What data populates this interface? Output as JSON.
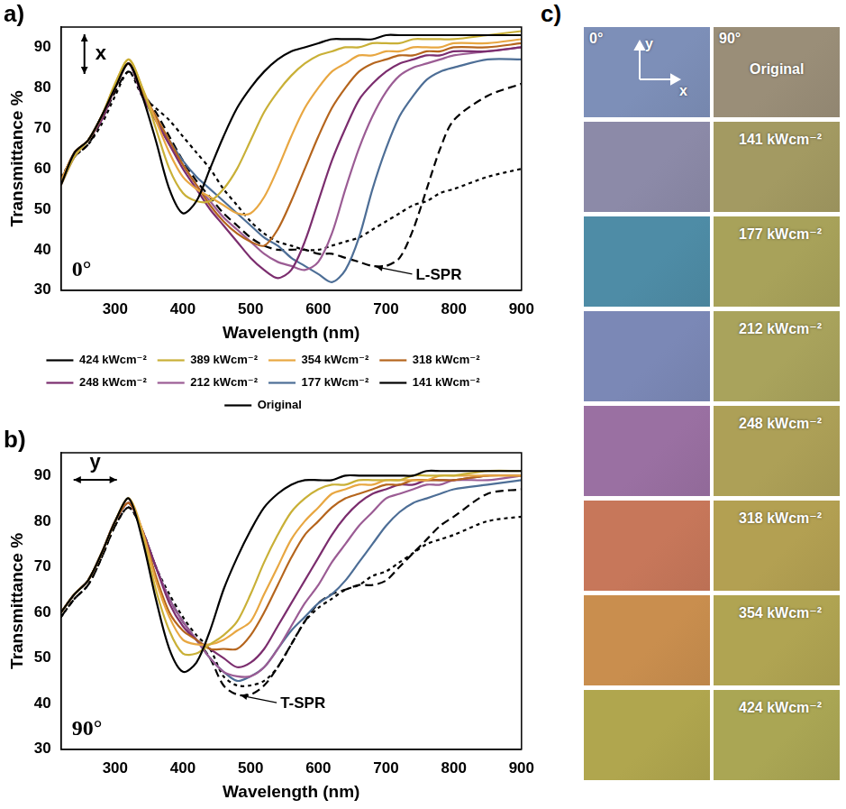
{
  "chart_data": [
    {
      "type": "line",
      "label": "a)",
      "x_label": "Wavelength (nm)",
      "y_label": "Transmittance %",
      "x": [
        220,
        240,
        260,
        280,
        300,
        320,
        340,
        360,
        380,
        400,
        420,
        440,
        460,
        480,
        500,
        520,
        540,
        560,
        580,
        600,
        620,
        640,
        660,
        680,
        700,
        720,
        740,
        760,
        780,
        800,
        850,
        900
      ],
      "xlim": [
        220,
        900
      ],
      "xticks": [
        300,
        400,
        500,
        600,
        700,
        800,
        900
      ],
      "ylim": [
        30,
        95
      ],
      "yticks": [
        30,
        40,
        50,
        60,
        70,
        80,
        90
      ],
      "grid": false,
      "legend": "bottom",
      "angle_label": "0°",
      "polarization": "x",
      "annotations": [
        {
          "text": "L-SPR"
        }
      ],
      "series": [
        {
          "name": "424 kWcm⁻²",
          "color": "#000000",
          "line_style": "solid",
          "values": [
            56,
            64,
            67,
            73,
            80,
            86,
            78,
            67,
            55,
            49,
            52,
            60,
            68,
            75,
            80,
            84,
            87,
            89,
            90,
            91,
            92,
            92,
            92,
            92,
            93,
            93,
            93,
            93,
            93,
            93,
            93,
            93
          ]
        },
        {
          "name": "389 kWcm⁻²",
          "color": "#c9b037",
          "line_style": "solid",
          "values": [
            56,
            63,
            67,
            73,
            81,
            87,
            80,
            70,
            60,
            54,
            52,
            52,
            55,
            60,
            67,
            74,
            79,
            83,
            86,
            88,
            89,
            90,
            90,
            91,
            91,
            91,
            92,
            92,
            92,
            92,
            93,
            94
          ]
        },
        {
          "name": "354 kWcm⁻²",
          "color": "#e8a742",
          "line_style": "solid",
          "values": [
            57,
            64,
            67,
            73,
            81,
            87,
            80,
            72,
            64,
            58,
            55,
            53,
            51,
            49,
            49,
            53,
            60,
            68,
            75,
            80,
            84,
            86,
            88,
            88,
            89,
            89,
            90,
            90,
            90,
            91,
            91,
            92
          ]
        },
        {
          "name": "318 kWcm⁻²",
          "color": "#b5651d",
          "line_style": "solid",
          "values": [
            57,
            64,
            67,
            73,
            80,
            86,
            79,
            73,
            67,
            61,
            56,
            51,
            47,
            44,
            42,
            41,
            45,
            52,
            60,
            68,
            75,
            80,
            84,
            86,
            87,
            88,
            88,
            89,
            89,
            90,
            90,
            91
          ]
        },
        {
          "name": "248 kWcm⁻²",
          "color": "#7b2d6e",
          "line_style": "solid",
          "values": [
            56,
            63,
            67,
            72,
            80,
            86,
            78,
            72,
            66,
            60,
            55,
            50,
            46,
            42,
            38,
            35,
            33,
            35,
            42,
            52,
            62,
            70,
            77,
            81,
            84,
            86,
            87,
            88,
            88,
            89,
            89,
            90
          ]
        },
        {
          "name": "212 kWcm⁻²",
          "color": "#9b5c94",
          "line_style": "solid",
          "values": [
            57,
            64,
            67,
            73,
            80,
            86,
            78,
            72,
            66,
            61,
            56,
            52,
            48,
            45,
            42,
            39,
            37,
            36,
            35,
            37,
            44,
            55,
            65,
            73,
            79,
            83,
            85,
            86,
            87,
            88,
            89,
            90
          ]
        },
        {
          "name": "177 kWcm⁻²",
          "color": "#4d6e96",
          "line_style": "solid",
          "values": [
            57,
            64,
            67,
            73,
            80,
            86,
            78,
            72,
            67,
            62,
            58,
            55,
            52,
            49,
            46,
            43,
            41,
            38,
            36,
            34,
            32,
            35,
            43,
            55,
            65,
            73,
            78,
            82,
            84,
            85,
            87,
            87
          ]
        },
        {
          "name": "141 kWcm⁻²",
          "color": "#000000",
          "line_style": "dashed",
          "values": [
            57,
            63,
            66,
            72,
            79,
            84,
            79,
            74,
            68,
            62,
            57,
            53,
            49,
            46,
            43,
            41,
            40,
            40,
            40,
            39,
            39,
            38,
            37,
            36,
            36,
            38,
            45,
            55,
            65,
            72,
            78,
            81
          ]
        },
        {
          "name": "Original",
          "color": "#000000",
          "line_style": "dotted",
          "values": [
            58,
            63,
            66,
            71,
            78,
            84,
            78,
            75,
            72,
            68,
            64,
            60,
            55,
            51,
            47,
            44,
            42,
            41,
            40,
            40,
            41,
            42,
            43,
            45,
            47,
            49,
            51,
            52,
            54,
            55,
            58,
            60
          ]
        }
      ]
    },
    {
      "type": "line",
      "label": "b)",
      "x_label": "Wavelength (nm)",
      "y_label": "Transmittance %",
      "x": [
        220,
        240,
        260,
        280,
        300,
        320,
        340,
        360,
        380,
        400,
        420,
        440,
        460,
        480,
        500,
        520,
        540,
        560,
        580,
        600,
        620,
        640,
        660,
        680,
        700,
        720,
        740,
        760,
        780,
        800,
        850,
        900
      ],
      "xlim": [
        220,
        900
      ],
      "xticks": [
        300,
        400,
        500,
        600,
        700,
        800,
        900
      ],
      "ylim": [
        30,
        95
      ],
      "yticks": [
        30,
        40,
        50,
        60,
        70,
        80,
        90
      ],
      "grid": false,
      "angle_label": "90°",
      "polarization": "y",
      "annotations": [
        {
          "text": "T-SPR"
        }
      ],
      "series": [
        {
          "color": "#000000",
          "line_style": "solid",
          "values": [
            60,
            64,
            67,
            73,
            80,
            85,
            76,
            63,
            52,
            47,
            49,
            56,
            65,
            72,
            78,
            83,
            86,
            88,
            89,
            89,
            89,
            90,
            90,
            90,
            90,
            90,
            90,
            91,
            91,
            91,
            91,
            91
          ]
        },
        {
          "color": "#c9b037",
          "line_style": "solid",
          "values": [
            60,
            64,
            67,
            73,
            80,
            85,
            77,
            65,
            56,
            51,
            51,
            53,
            55,
            58,
            64,
            71,
            77,
            82,
            85,
            87,
            88,
            88,
            89,
            89,
            89,
            89,
            90,
            90,
            90,
            90,
            91,
            91
          ]
        },
        {
          "color": "#e8a742",
          "line_style": "solid",
          "values": [
            60,
            64,
            67,
            73,
            80,
            85,
            78,
            67,
            59,
            54,
            53,
            53,
            54,
            56,
            58,
            64,
            70,
            76,
            80,
            83,
            86,
            87,
            88,
            88,
            89,
            89,
            89,
            89,
            90,
            90,
            90,
            90
          ]
        },
        {
          "color": "#b5651d",
          "line_style": "solid",
          "values": [
            60,
            64,
            67,
            73,
            80,
            84,
            78,
            68,
            60,
            56,
            54,
            52,
            52,
            52,
            55,
            60,
            66,
            72,
            77,
            80,
            83,
            85,
            86,
            87,
            88,
            88,
            89,
            89,
            89,
            89,
            90,
            90
          ]
        },
        {
          "color": "#7b2d6e",
          "line_style": "solid",
          "values": [
            60,
            64,
            67,
            73,
            80,
            84,
            78,
            70,
            62,
            57,
            54,
            52,
            50,
            48,
            49,
            52,
            57,
            62,
            67,
            72,
            77,
            81,
            84,
            86,
            87,
            88,
            88,
            89,
            89,
            89,
            90,
            90
          ]
        },
        {
          "color": "#9b5c94",
          "line_style": "solid",
          "values": [
            60,
            64,
            67,
            73,
            80,
            84,
            78,
            70,
            63,
            58,
            54,
            50,
            47,
            46,
            46,
            48,
            52,
            57,
            62,
            66,
            71,
            75,
            79,
            82,
            85,
            86,
            87,
            88,
            88,
            89,
            89,
            90
          ]
        },
        {
          "color": "#4d6e96",
          "line_style": "solid",
          "values": [
            60,
            64,
            67,
            73,
            80,
            84,
            78,
            70,
            63,
            58,
            54,
            50,
            47,
            45,
            46,
            48,
            52,
            56,
            59,
            62,
            64,
            67,
            71,
            75,
            79,
            82,
            84,
            85,
            86,
            87,
            88,
            89
          ]
        },
        {
          "color": "#000000",
          "line_style": "dashed",
          "values": [
            59,
            63,
            66,
            72,
            79,
            83,
            78,
            70,
            63,
            58,
            54,
            50,
            44,
            42,
            42,
            44,
            48,
            53,
            58,
            62,
            64,
            65,
            66,
            66,
            67,
            70,
            73,
            76,
            79,
            81,
            86,
            87
          ]
        },
        {
          "color": "#000000",
          "line_style": "dotted",
          "values": [
            59,
            63,
            66,
            72,
            79,
            83,
            78,
            70,
            64,
            59,
            55,
            52,
            46,
            44,
            44,
            45,
            48,
            53,
            58,
            61,
            63,
            65,
            66,
            68,
            69,
            71,
            73,
            75,
            76,
            77,
            80,
            81
          ]
        }
      ]
    }
  ],
  "photo_panel": {
    "label": "c)",
    "columns": [
      "0°",
      "90°"
    ],
    "axes": [
      "x",
      "y"
    ],
    "rows": [
      {
        "label": "Original",
        "colors": [
          "#7d8fb8",
          "#9a8e78"
        ]
      },
      {
        "label": "141 kWcm⁻²",
        "colors": [
          "#8c8aa8",
          "#a39a62"
        ]
      },
      {
        "label": "177 kWcm⁻²",
        "colors": [
          "#4e8ca6",
          "#a8a25a"
        ]
      },
      {
        "label": "212 kWcm⁻²",
        "colors": [
          "#7b88b6",
          "#a9a35c"
        ]
      },
      {
        "label": "248 kWcm⁻²",
        "colors": [
          "#9a70a2",
          "#ada057"
        ]
      },
      {
        "label": "318 kWcm⁻²",
        "colors": [
          "#c7775a",
          "#b3a052"
        ]
      },
      {
        "label": "354 kWcm⁻²",
        "colors": [
          "#c98e4e",
          "#b0a452"
        ]
      },
      {
        "label": "424 kWcm⁻²",
        "colors": [
          "#b0a64e",
          "#aaa654"
        ]
      }
    ]
  }
}
